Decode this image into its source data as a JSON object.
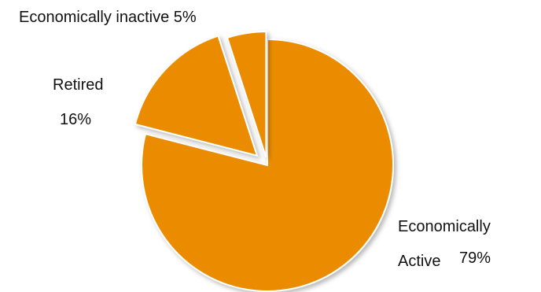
{
  "chart_data": {
    "type": "pie",
    "title": "",
    "exploded": true,
    "slices": [
      {
        "label": "Economically Active",
        "value": 79,
        "value_label": "79%",
        "color": "#EB8C00"
      },
      {
        "label": "Retired",
        "value": 16,
        "value_label": "16%",
        "color": "#EB8C00"
      },
      {
        "label": "Economically inactive",
        "value": 5,
        "value_label": "5%",
        "color": "#EB8C00"
      }
    ],
    "labels": {
      "active_line1": "Economically",
      "active_line2": "Active",
      "active_value": "79%",
      "retired_name": "Retired",
      "retired_value": "16%",
      "inactive_name": "Economically inactive",
      "inactive_value": "5%"
    }
  }
}
